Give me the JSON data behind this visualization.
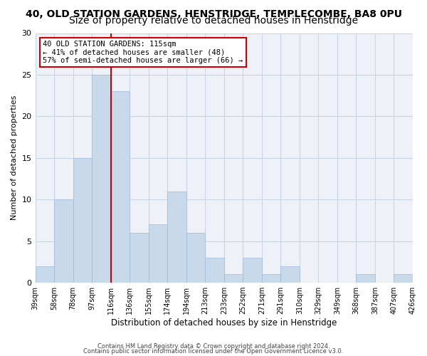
{
  "title1": "40, OLD STATION GARDENS, HENSTRIDGE, TEMPLECOMBE, BA8 0PU",
  "title2": "Size of property relative to detached houses in Henstridge",
  "xlabel": "Distribution of detached houses by size in Henstridge",
  "ylabel": "Number of detached properties",
  "bin_labels": [
    "39sqm",
    "58sqm",
    "78sqm",
    "97sqm",
    "116sqm",
    "136sqm",
    "155sqm",
    "174sqm",
    "194sqm",
    "213sqm",
    "233sqm",
    "252sqm",
    "271sqm",
    "291sqm",
    "310sqm",
    "329sqm",
    "349sqm",
    "368sqm",
    "387sqm",
    "407sqm",
    "426sqm"
  ],
  "bar_values": [
    2,
    10,
    15,
    25,
    23,
    6,
    7,
    11,
    6,
    3,
    1,
    3,
    1,
    2,
    0,
    0,
    0,
    1,
    0,
    1
  ],
  "bar_color": "#c9d9ec",
  "bar_edge_color": "#a0b8d8",
  "redline_color": "#cc0000",
  "annotation_lines": [
    "40 OLD STATION GARDENS: 115sqm",
    "← 41% of detached houses are smaller (48)",
    "57% of semi-detached houses are larger (66) →"
  ],
  "annotation_box_color": "#cc0000",
  "ylim": [
    0,
    30
  ],
  "yticks": [
    0,
    5,
    10,
    15,
    20,
    25,
    30
  ],
  "grid_color": "#c8d4e8",
  "bg_color": "#eef2f8",
  "footer1": "Contains HM Land Registry data © Crown copyright and database right 2024.",
  "footer2": "Contains public sector information licensed under the Open Government Licence v3.0.",
  "title1_fontsize": 10,
  "title2_fontsize": 10
}
